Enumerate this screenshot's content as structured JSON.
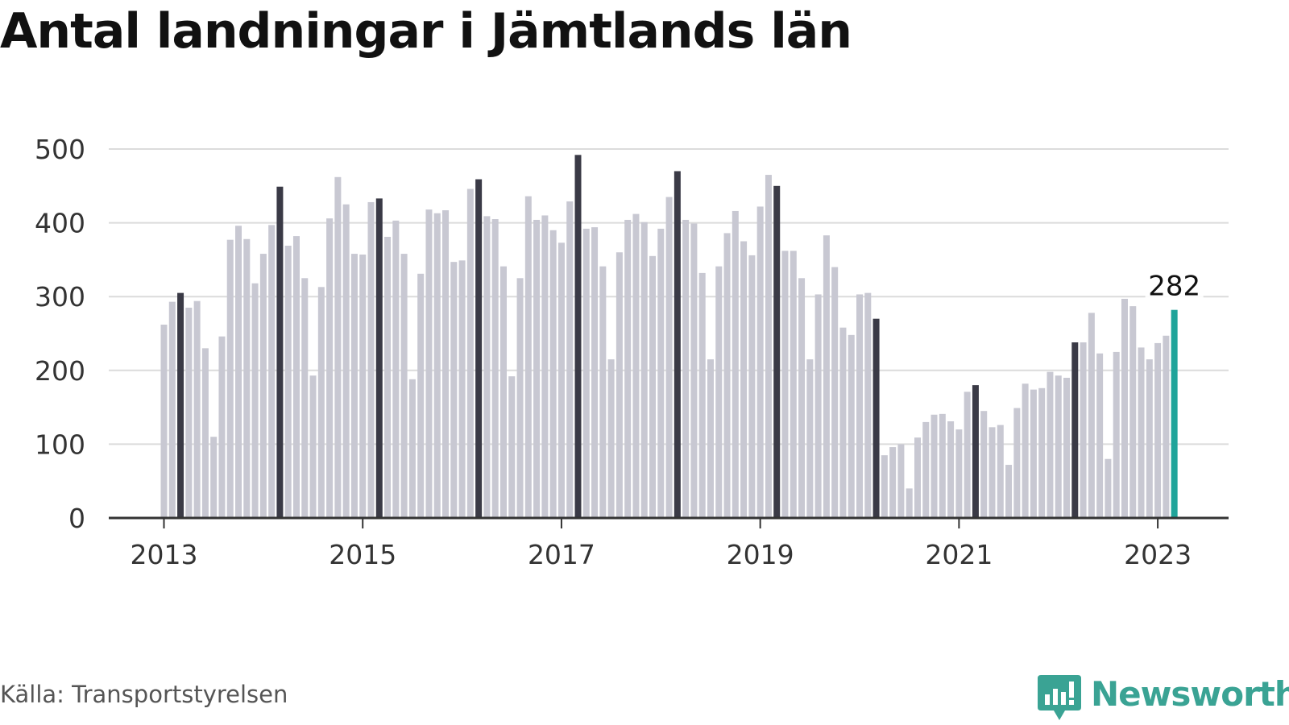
{
  "chart_data": {
    "type": "bar",
    "title": "Antal landningar i Jämtlands län",
    "xlabel": "",
    "ylabel": "",
    "ylim": [
      0,
      500
    ],
    "yticks": [
      "0",
      "100",
      "200",
      "300",
      "400",
      "500"
    ],
    "xticks": [
      "2013",
      "2015",
      "2017",
      "2019",
      "2021",
      "2023"
    ],
    "start": "2013-01",
    "values": [
      262,
      293,
      305,
      285,
      294,
      230,
      110,
      246,
      377,
      396,
      378,
      318,
      358,
      397,
      449,
      369,
      382,
      325,
      193,
      313,
      406,
      462,
      425,
      358,
      357,
      428,
      433,
      381,
      403,
      358,
      188,
      331,
      418,
      413,
      417,
      347,
      349,
      446,
      459,
      409,
      405,
      341,
      192,
      325,
      436,
      404,
      410,
      390,
      373,
      429,
      492,
      392,
      394,
      341,
      215,
      360,
      404,
      412,
      401,
      355,
      392,
      435,
      470,
      404,
      399,
      332,
      215,
      341,
      386,
      416,
      375,
      356,
      422,
      465,
      450,
      362,
      362,
      325,
      215,
      303,
      383,
      340,
      258,
      248,
      303,
      305,
      270,
      85,
      96,
      100,
      40,
      109,
      130,
      140,
      141,
      131,
      120,
      171,
      180,
      145,
      123,
      126,
      72,
      149,
      182,
      174,
      176,
      198,
      193,
      190,
      238,
      238,
      278,
      223,
      80,
      225,
      297,
      287,
      231,
      215,
      237,
      247,
      282
    ],
    "highlighted_month": "March",
    "grid": true,
    "legend": "none",
    "latest_label": "282",
    "colors": {
      "bar": "#c8c8d2",
      "march_bar": "#3a3a46",
      "latest_bar": "#1fa49a",
      "grid": "#dcdcdc",
      "axis": "#333333"
    }
  },
  "source": "Källa: Transportstyrelsen",
  "brand": {
    "name": "Newsworthy",
    "icon": "bar-chart-speech-bubble-icon",
    "color": "#3aa394"
  }
}
